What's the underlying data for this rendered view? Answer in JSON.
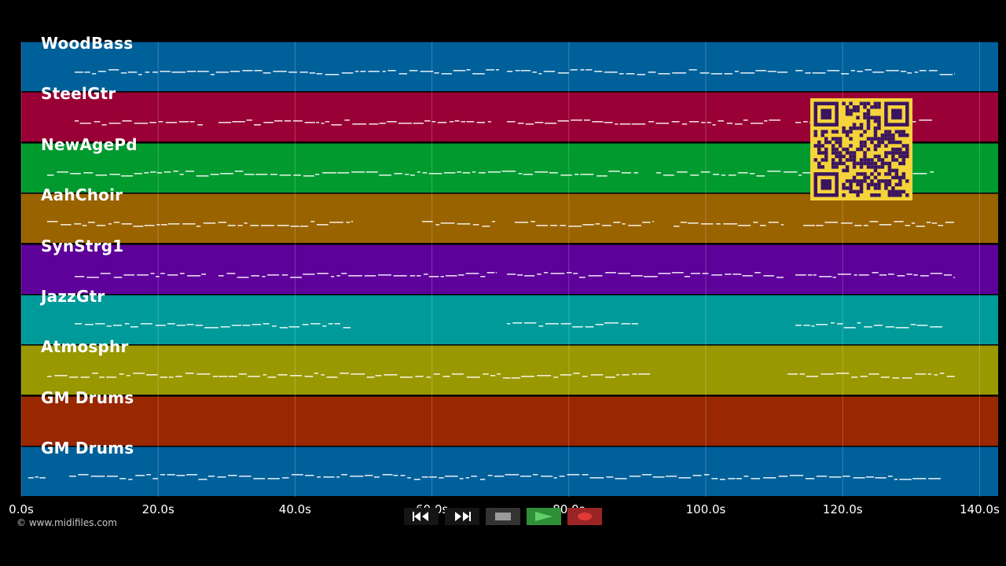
{
  "tracks": [
    {
      "name": "WoodBass",
      "color": "#00609a"
    },
    {
      "name": "SteelGtr",
      "color": "#990035"
    },
    {
      "name": "NewAgePd",
      "color": "#009a2e"
    },
    {
      "name": "AahChoir",
      "color": "#996300"
    },
    {
      "name": "SynStrg1",
      "color": "#5e009a"
    },
    {
      "name": "JazzGtr",
      "color": "#009a9a"
    },
    {
      "name": "Atmosphr",
      "color": "#9a9800"
    },
    {
      "name": "GM Drums",
      "color": "#992700"
    },
    {
      "name": "GM Drums",
      "color": "#00609a"
    }
  ],
  "timeline": {
    "ticks": [
      "0.0s",
      "20.0s",
      "40.0s",
      "60.0s",
      "80.0s",
      "100.0s",
      "120.0s",
      "140.0s"
    ]
  },
  "copyright": "© www.midifiles.com",
  "transport": {
    "rewind": "rewind-icon",
    "fast_forward": "fast-forward-icon",
    "stop": "stop-icon",
    "play": "play-icon",
    "record": "record-icon"
  },
  "colors": {
    "background": "#000000",
    "qr_bg": "#f5d33a",
    "qr_fg": "#3a1460",
    "play_bg": "#2f8f36",
    "record_bg": "#9b2424"
  }
}
